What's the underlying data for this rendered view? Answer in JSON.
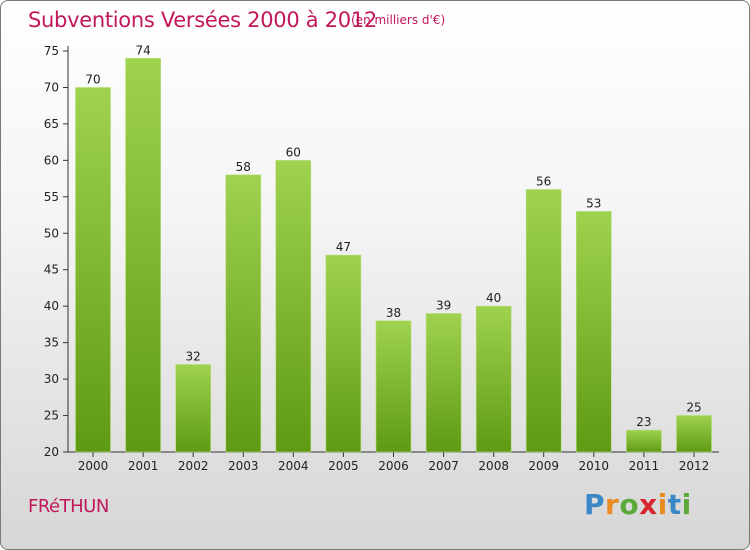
{
  "header": {
    "title": "Subventions Versées 2000 à 2012",
    "subtitle": "(en milliers d'€)"
  },
  "footer": {
    "commune": "FRéTHUN",
    "logo_letters": [
      "P",
      "r",
      "o",
      "x",
      "i",
      "t",
      "i"
    ],
    "logo_colors": [
      "#3a88c8",
      "#e98b1e",
      "#5aa93a",
      "#d9262e",
      "#e98b1e",
      "#3a88c8",
      "#5aa93a"
    ]
  },
  "chart_data": {
    "type": "bar",
    "title": "Subventions Versées 2000 à 2012",
    "subtitle": "(en milliers d'€)",
    "categories": [
      "2000",
      "2001",
      "2002",
      "2003",
      "2004",
      "2005",
      "2006",
      "2007",
      "2008",
      "2009",
      "2010",
      "2011",
      "2012"
    ],
    "values": [
      70,
      74,
      32,
      58,
      60,
      47,
      38,
      39,
      40,
      56,
      53,
      23,
      25
    ],
    "ylim": [
      20,
      75
    ],
    "yticks": [
      20,
      25,
      30,
      35,
      40,
      45,
      50,
      55,
      60,
      65,
      70,
      75
    ],
    "grid": false,
    "bar_color_top": "#9fd24f",
    "bar_color_bottom": "#5f9a14",
    "title_color": "#c2185b"
  }
}
